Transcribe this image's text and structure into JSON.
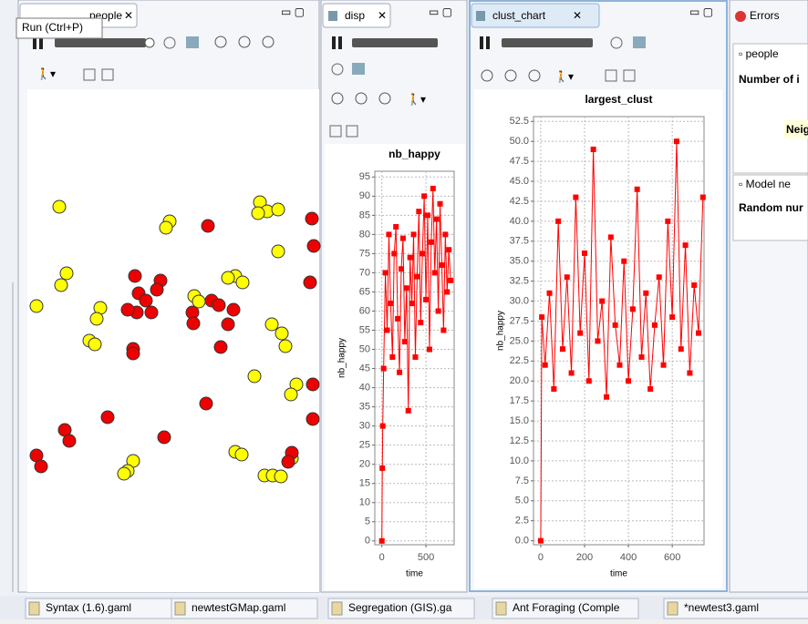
{
  "tooltip": "Run (Ctrl+P)",
  "tabs": {
    "people": "people",
    "disp": "disp",
    "clust_chart": "clust_chart",
    "errors": "Errors"
  },
  "parameters": {
    "section1": "people",
    "row1": "Number of i",
    "row2": "Neig",
    "section2": "Model ne",
    "row3": "Random nur"
  },
  "editor_tabs": [
    "Syntax (1.6).gaml",
    "newtestGMap.gaml",
    "Segregation (GIS).ga",
    "Ant Foraging (Comple",
    "*newtest3.gaml"
  ],
  "chart_data": [
    {
      "type": "line",
      "title": "nb_happy",
      "xlabel": "time",
      "ylabel": "nb_happy",
      "x": [
        0,
        5,
        10,
        20,
        40,
        60,
        80,
        100,
        120,
        140,
        160,
        180,
        200,
        220,
        240,
        260,
        280,
        300,
        320,
        340,
        360,
        380,
        400,
        420,
        440,
        460,
        480,
        500,
        520,
        540,
        560,
        580,
        600,
        620,
        640,
        660,
        680,
        700,
        720,
        740,
        760,
        780
      ],
      "series": [
        {
          "name": "nb_happy",
          "color": "#ff0000",
          "values": [
            0,
            19,
            30,
            45,
            70,
            55,
            80,
            62,
            48,
            75,
            82,
            58,
            44,
            71,
            79,
            52,
            66,
            34,
            74,
            62,
            80,
            48,
            69,
            86,
            57,
            75,
            90,
            63,
            85,
            50,
            78,
            92,
            70,
            84,
            60,
            88,
            72,
            55,
            80,
            65,
            76,
            68
          ]
        }
      ],
      "xlim": [
        -80,
        820
      ],
      "ylim": [
        -1,
        96.5
      ],
      "xticks": [
        0,
        500
      ],
      "yticks": [
        0,
        5,
        10,
        15,
        20,
        25,
        30,
        35,
        40,
        45,
        50,
        55,
        60,
        65,
        70,
        75,
        80,
        85,
        90,
        95
      ],
      "grid": true
    },
    {
      "type": "line",
      "title": "largest_clust",
      "xlabel": "time",
      "ylabel": "nb_happy",
      "x": [
        0,
        5,
        20,
        40,
        60,
        80,
        100,
        120,
        140,
        160,
        180,
        200,
        220,
        240,
        260,
        280,
        300,
        320,
        340,
        360,
        380,
        400,
        420,
        440,
        460,
        480,
        500,
        520,
        540,
        560,
        580,
        600,
        620,
        640,
        660,
        680,
        700,
        720,
        740
      ],
      "series": [
        {
          "name": "largest_clust",
          "color": "#ff0000",
          "values": [
            0,
            28,
            22,
            31,
            19,
            40,
            24,
            33,
            21,
            43,
            26,
            36,
            20,
            49,
            25,
            30,
            18,
            38,
            27,
            22,
            35,
            20,
            29,
            44,
            23,
            31,
            19,
            27,
            33,
            22,
            40,
            28,
            50,
            24,
            37,
            21,
            32,
            26,
            43
          ]
        }
      ],
      "xlim": [
        -33,
        745
      ],
      "ylim": [
        -0.5,
        53.1
      ],
      "xticks": [
        0,
        200,
        400,
        600
      ],
      "yticks": [
        {
          "value": 0,
          "label": "0.0"
        },
        2.5,
        {
          "value": 5,
          "label": "5.0"
        },
        7.5,
        {
          "value": 10,
          "label": "10.0"
        },
        12.5,
        {
          "value": 15,
          "label": "15.0"
        },
        17.5,
        {
          "value": 20,
          "label": "20.0"
        },
        22.5,
        {
          "value": 25,
          "label": "25.0"
        },
        27.5,
        {
          "value": 30,
          "label": "30.0"
        },
        32.5,
        {
          "value": 35,
          "label": "35.0"
        },
        37.5,
        {
          "value": 40,
          "label": "40.0"
        },
        42.5,
        {
          "value": 45,
          "label": "45.0"
        },
        47.5,
        {
          "value": 50,
          "label": "50.0"
        },
        52.5
      ],
      "grid": true
    }
  ]
}
